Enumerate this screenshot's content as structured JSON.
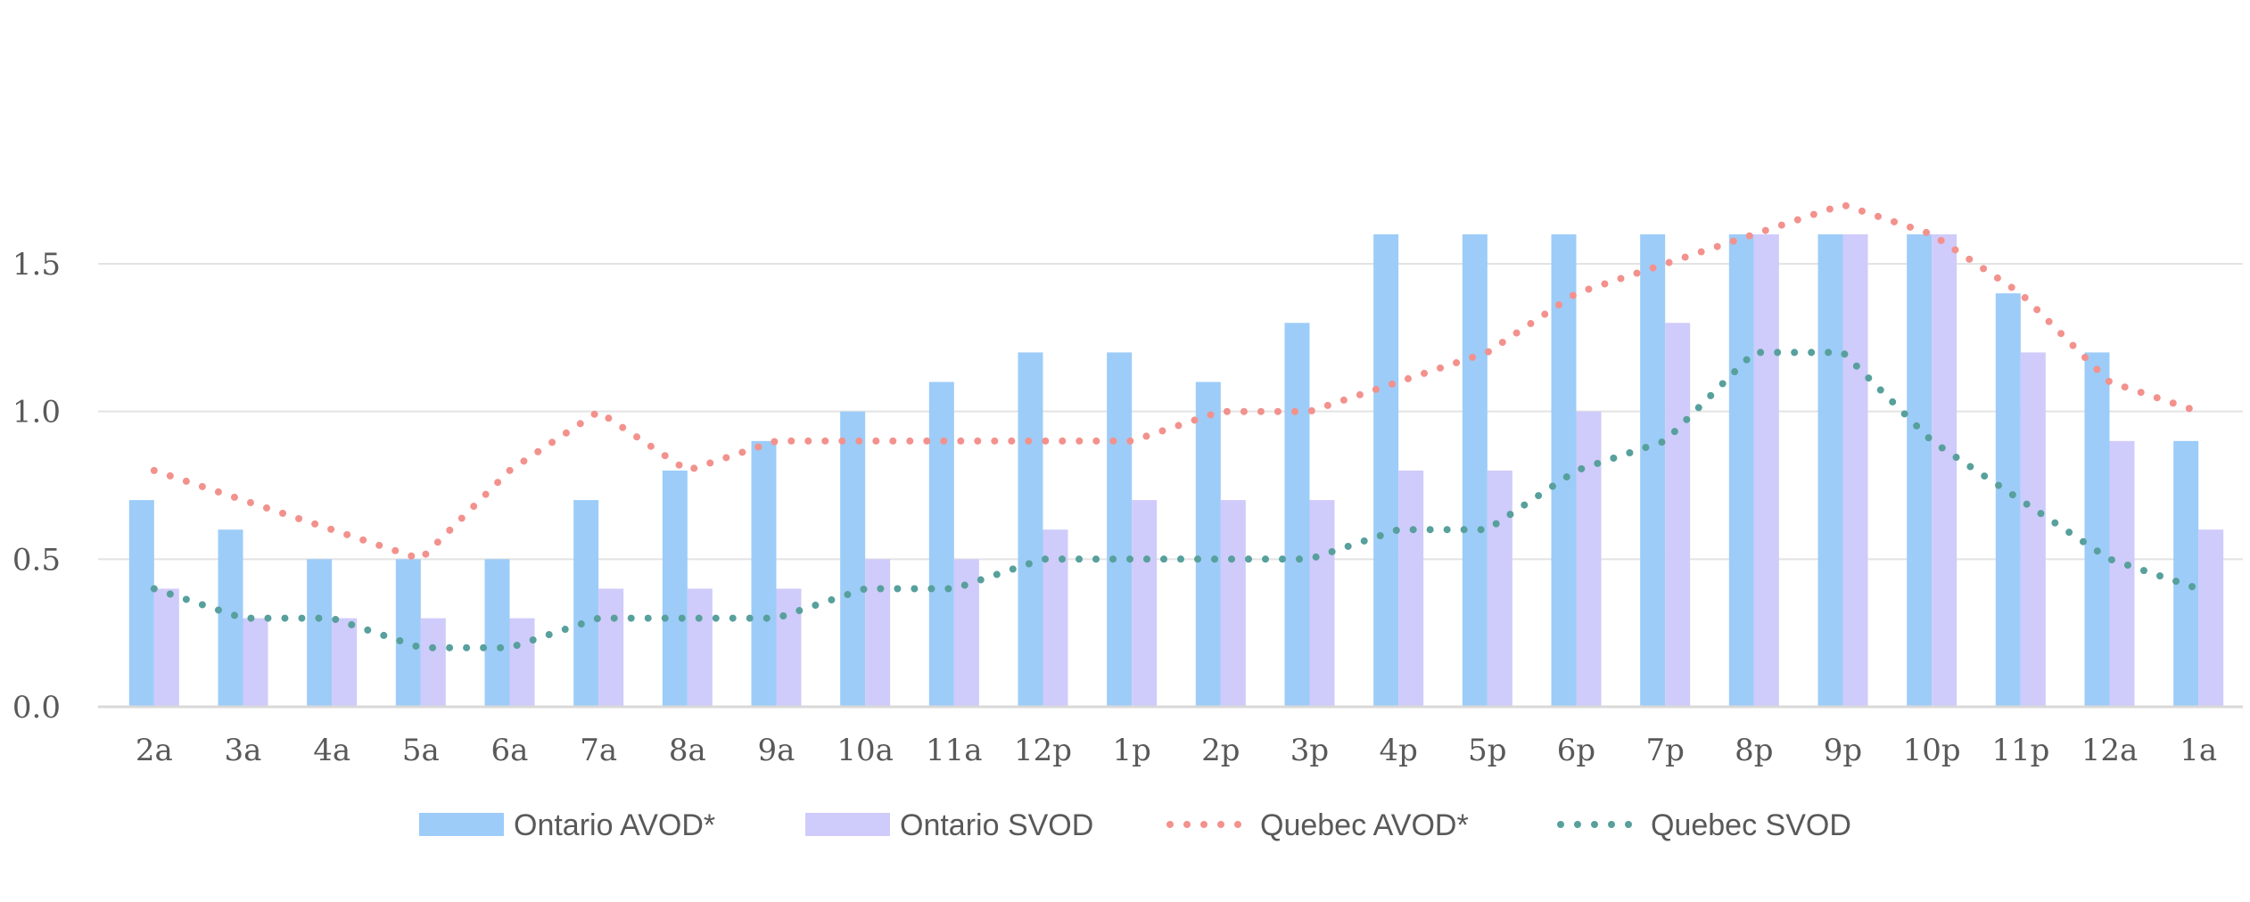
{
  "chart_data": {
    "type": "bar",
    "categories": [
      "2a",
      "3a",
      "4a",
      "5a",
      "6a",
      "7a",
      "8a",
      "9a",
      "10a",
      "11a",
      "12p",
      "1p",
      "2p",
      "3p",
      "4p",
      "5p",
      "6p",
      "7p",
      "8p",
      "9p",
      "10p",
      "11p",
      "12a",
      "1a"
    ],
    "ylim": [
      0,
      1.5
    ],
    "y_ticks": [
      "0.0",
      "0.5",
      "1.0",
      "1.5"
    ],
    "y_tick_values": [
      0,
      0.5,
      1.0,
      1.5
    ],
    "grid": true,
    "legend_position": "bottom",
    "series": [
      {
        "name": "Ontario AVOD*",
        "kind": "bar",
        "color": "#9DCCF8",
        "values": [
          0.7,
          0.6,
          0.5,
          0.5,
          0.5,
          0.7,
          0.8,
          0.9,
          1.0,
          1.1,
          1.2,
          1.2,
          1.1,
          1.3,
          1.6,
          1.6,
          1.6,
          1.6,
          1.6,
          1.6,
          1.6,
          1.4,
          1.2,
          0.9
        ]
      },
      {
        "name": "Ontario SVOD",
        "kind": "bar",
        "color": "#CFCBFA",
        "values": [
          0.4,
          0.3,
          0.3,
          0.3,
          0.3,
          0.4,
          0.4,
          0.4,
          0.5,
          0.5,
          0.6,
          0.7,
          0.7,
          0.7,
          0.8,
          0.8,
          1.0,
          1.3,
          1.6,
          1.6,
          1.6,
          1.2,
          0.9,
          0.6
        ]
      },
      {
        "name": "Quebec AVOD*",
        "kind": "line",
        "style": "dotted",
        "color": "#F3918D",
        "values": [
          0.8,
          0.7,
          0.6,
          0.5,
          0.8,
          1.0,
          0.8,
          0.9,
          0.9,
          0.9,
          0.9,
          0.9,
          1.0,
          1.0,
          1.1,
          1.2,
          1.4,
          1.5,
          1.6,
          1.7,
          1.6,
          1.4,
          1.1,
          1.0
        ]
      },
      {
        "name": "Quebec SVOD",
        "kind": "line",
        "style": "dotted",
        "color": "#57A09C",
        "values": [
          0.4,
          0.3,
          0.3,
          0.2,
          0.2,
          0.3,
          0.3,
          0.3,
          0.4,
          0.4,
          0.5,
          0.5,
          0.5,
          0.5,
          0.6,
          0.6,
          0.8,
          0.9,
          1.2,
          1.2,
          0.9,
          0.7,
          0.5,
          0.4
        ]
      }
    ]
  }
}
